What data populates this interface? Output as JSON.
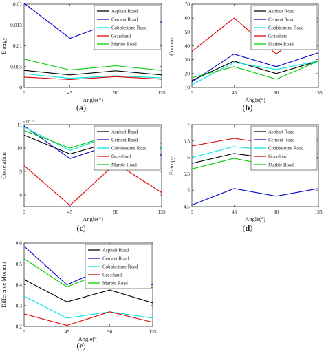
{
  "colors": {
    "Asphalt Road": "#000000",
    "Cement Road": "#0000cc",
    "Cobblestone Road": "#00e5e5",
    "Grassland": "#e00000",
    "Marble Road": "#00cc00"
  },
  "chart_data": [
    {
      "type": "line",
      "panel_label": "(a)",
      "xlabel": "Angle(°)",
      "ylabel": "Energy",
      "x": [
        0,
        45,
        90,
        135
      ],
      "xticks": [
        "0",
        "45",
        "90",
        "135"
      ],
      "ylim": [
        0,
        0.02
      ],
      "yticks": [
        "0",
        "0.005",
        "0.01",
        "0.015",
        "0.02"
      ],
      "exponent": "",
      "legend_position": "top-right",
      "series": [
        {
          "name": "Asphalt Road",
          "values": [
            0.0041,
            0.003,
            0.004,
            0.003
          ]
        },
        {
          "name": "Cement Road",
          "values": [
            0.0202,
            0.0118,
            0.0158,
            0.0157
          ]
        },
        {
          "name": "Cobblestone Road",
          "values": [
            0.0033,
            0.0022,
            0.0028,
            0.0023
          ]
        },
        {
          "name": "Grassland",
          "values": [
            0.0025,
            0.0019,
            0.0026,
            0.002
          ]
        },
        {
          "name": "Marble Road",
          "values": [
            0.0068,
            0.0042,
            0.0052,
            0.0041
          ]
        }
      ]
    },
    {
      "type": "line",
      "panel_label": "(b)",
      "xlabel": "Angle(°)",
      "ylabel": "Contrast",
      "x": [
        0,
        45,
        90,
        135
      ],
      "xticks": [
        "0",
        "45",
        "90",
        "135"
      ],
      "ylim": [
        10,
        70
      ],
      "yticks": [
        "10",
        "20",
        "30",
        "40",
        "50",
        "60",
        "70"
      ],
      "exponent": "",
      "legend_position": "top-right",
      "series": [
        {
          "name": "Asphalt Road",
          "values": [
            15,
            29,
            20,
            29
          ]
        },
        {
          "name": "Cement Road",
          "values": [
            14,
            34,
            25,
            35
          ]
        },
        {
          "name": "Cobblestone Road",
          "values": [
            12,
            28,
            23,
            29
          ]
        },
        {
          "name": "Grassland",
          "values": [
            36,
            60,
            34,
            58
          ]
        },
        {
          "name": "Marble Road",
          "values": [
            17,
            25,
            16,
            29
          ]
        }
      ]
    },
    {
      "type": "line",
      "panel_label": "(c)",
      "xlabel": "Angle(°)",
      "ylabel": "Correlation",
      "x": [
        0,
        45,
        90,
        135
      ],
      "xticks": [
        "0",
        "45",
        "90",
        "135"
      ],
      "ylim": [
        7.5,
        11
      ],
      "yticks": [
        "8",
        "9",
        "10",
        "11"
      ],
      "exponent": "×10⁻³",
      "legend_position": "top-right",
      "series": [
        {
          "name": "Asphalt Road",
          "values": [
            10.55,
            9.75,
            10.3,
            9.95
          ]
        },
        {
          "name": "Cement Road",
          "values": [
            10.95,
            9.55,
            10.2,
            9.7
          ]
        },
        {
          "name": "Cobblestone Road",
          "values": [
            10.9,
            9.9,
            10.6,
            10.0
          ]
        },
        {
          "name": "Grassland",
          "values": [
            9.25,
            7.55,
            9.35,
            8.1
          ]
        },
        {
          "name": "Marble Road",
          "values": [
            10.75,
            10.0,
            10.6,
            10.2
          ]
        }
      ]
    },
    {
      "type": "line",
      "panel_label": "(d)",
      "xlabel": "Angle(°)",
      "ylabel": "Entropy",
      "x": [
        0,
        45,
        90,
        135
      ],
      "xticks": [
        "0",
        "45",
        "90",
        "135"
      ],
      "ylim": [
        4.5,
        7
      ],
      "yticks": [
        "4.5",
        "5",
        "5.5",
        "6",
        "6.5",
        "7"
      ],
      "exponent": "",
      "legend_position": "top-right",
      "series": [
        {
          "name": "Asphalt Road",
          "values": [
            5.82,
            6.12,
            5.95,
            6.12
          ]
        },
        {
          "name": "Cement Road",
          "values": [
            4.55,
            5.05,
            4.82,
            5.05
          ]
        },
        {
          "name": "Cobblestone Road",
          "values": [
            6.0,
            6.33,
            6.2,
            6.33
          ]
        },
        {
          "name": "Grassland",
          "values": [
            6.35,
            6.58,
            6.4,
            6.58
          ]
        },
        {
          "name": "Marble Road",
          "values": [
            5.65,
            5.97,
            5.72,
            5.97
          ]
        }
      ]
    },
    {
      "type": "line",
      "panel_label": "(e)",
      "xlabel": "Angle(°)",
      "ylabel": "Difference Moment",
      "x": [
        0,
        45,
        90,
        135
      ],
      "xticks": [
        "0",
        "45",
        "90",
        "135"
      ],
      "ylim": [
        0.2,
        0.6
      ],
      "yticks": [
        "0.2",
        "0.3",
        "0.4",
        "0.5",
        "0.6"
      ],
      "exponent": "",
      "legend_position": "top-right",
      "series": [
        {
          "name": "Asphalt Road",
          "values": [
            0.425,
            0.318,
            0.375,
            0.313
          ]
        },
        {
          "name": "Cement Road",
          "values": [
            0.585,
            0.4,
            0.49,
            0.4
          ]
        },
        {
          "name": "Cobblestone Road",
          "values": [
            0.345,
            0.24,
            0.27,
            0.24
          ]
        },
        {
          "name": "Grassland",
          "values": [
            0.26,
            0.205,
            0.27,
            0.22
          ]
        },
        {
          "name": "Marble Road",
          "values": [
            0.525,
            0.39,
            0.47,
            0.385
          ]
        }
      ]
    }
  ]
}
